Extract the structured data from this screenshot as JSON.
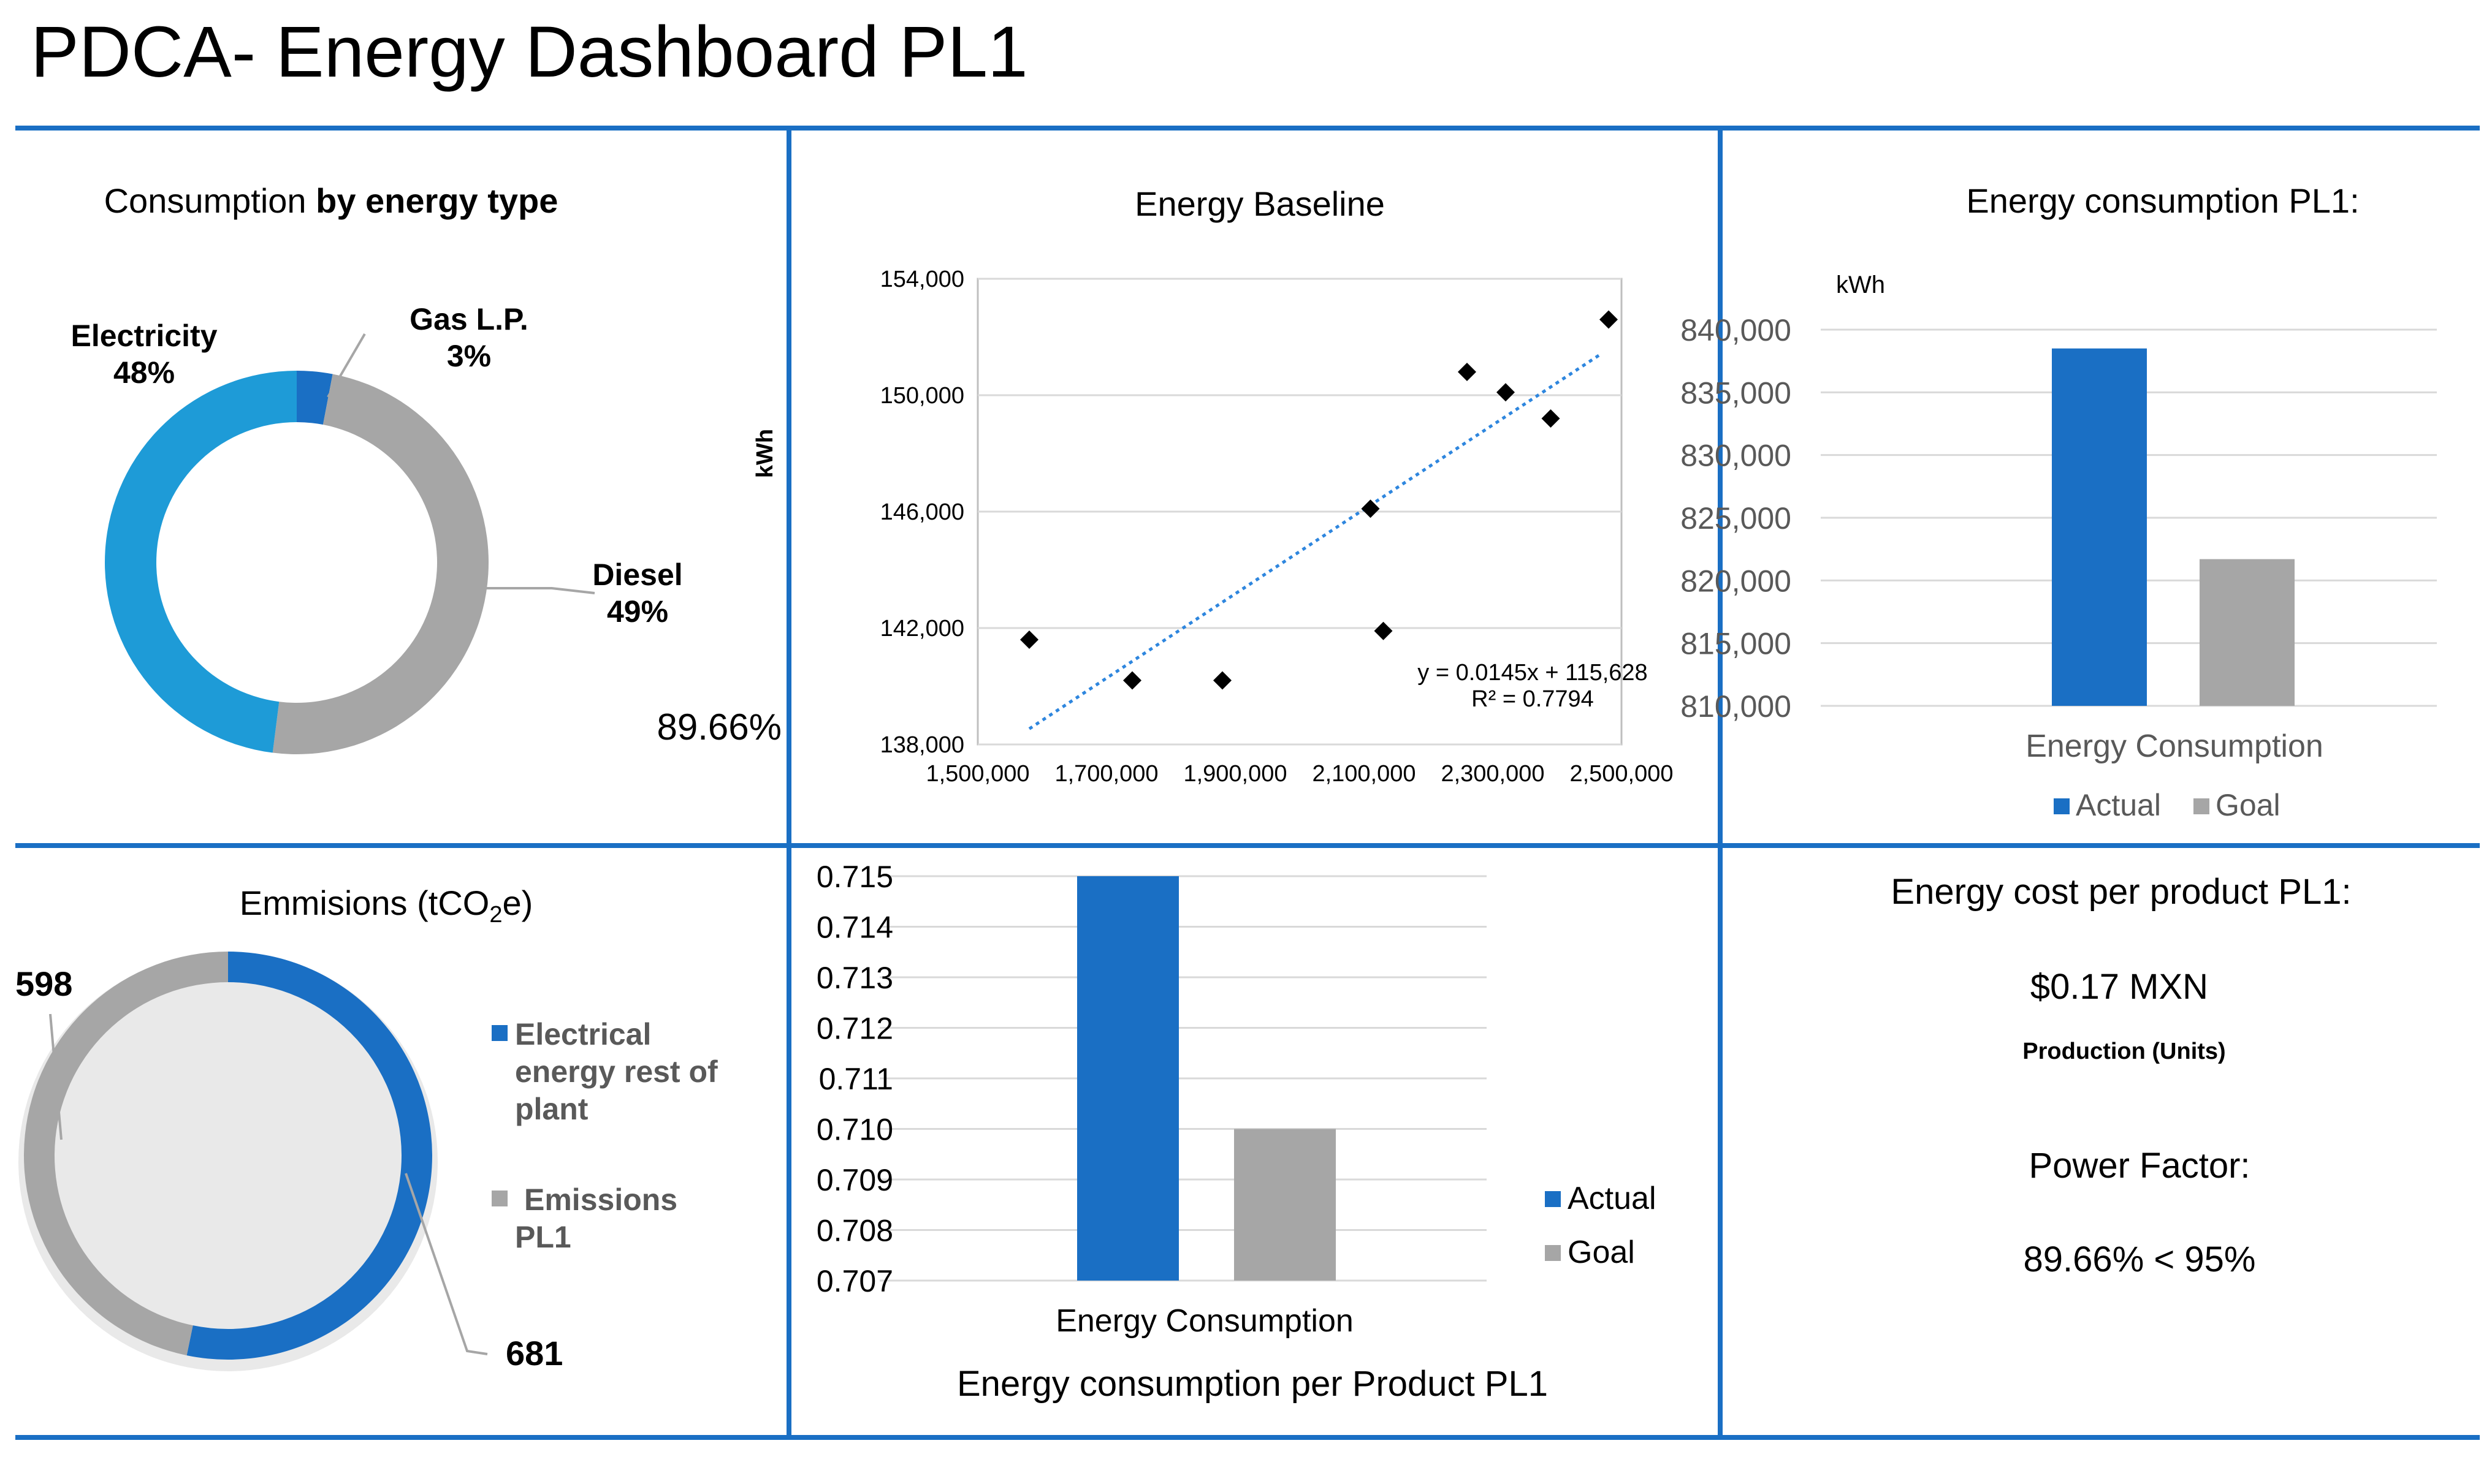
{
  "page": {
    "title": "PDCA- Energy Dashboard PL1",
    "accent_color": "#1A6FC4"
  },
  "donut_energy": {
    "title_prefix": "Consumption ",
    "title_bold": "by energy type",
    "pct_note": "89.66%",
    "chart_data": {
      "type": "pie",
      "variant": "donut",
      "slices": [
        {
          "name": "Gas L.P.",
          "value": 3,
          "label": "3%",
          "color": "#1A6FC4"
        },
        {
          "name": "Diesel",
          "value": 49,
          "label": "49%",
          "color": "#A6A6A6"
        },
        {
          "name": "Electricity",
          "value": 48,
          "label": "48%",
          "color": "#1E9BD7"
        }
      ]
    }
  },
  "baseline": {
    "chart_data": {
      "type": "scatter",
      "title": "Energy Baseline",
      "xlabel": "",
      "ylabel": "kWh",
      "xlim": [
        1500000,
        2500000
      ],
      "ylim": [
        138000,
        154000
      ],
      "xticks": [
        1500000,
        1700000,
        1900000,
        2100000,
        2300000,
        2500000
      ],
      "xtick_labels": [
        "1,500,000",
        "1,700,000",
        "1,900,000",
        "2,100,000",
        "2,300,000",
        "2,500,000"
      ],
      "yticks": [
        138000,
        142000,
        146000,
        150000,
        154000
      ],
      "ytick_labels": [
        "138,000",
        "142,000",
        "146,000",
        "150,000",
        "154,000"
      ],
      "grid": true,
      "points": [
        {
          "x": 1580000,
          "y": 141600
        },
        {
          "x": 1740000,
          "y": 140200
        },
        {
          "x": 1880000,
          "y": 140200
        },
        {
          "x": 2110000,
          "y": 146100
        },
        {
          "x": 2130000,
          "y": 141900
        },
        {
          "x": 2260000,
          "y": 150800
        },
        {
          "x": 2320000,
          "y": 150100
        },
        {
          "x": 2390000,
          "y": 149200
        },
        {
          "x": 2480000,
          "y": 152600
        }
      ],
      "trendline": {
        "x": [
          1580000,
          2470000
        ],
        "slope": 0.0145,
        "intercept": 115628
      },
      "equation_label": "y = 0.0145x + 115,628",
      "r2_label": "R² = 0.7794"
    }
  },
  "consumption": {
    "chart_data": {
      "type": "bar",
      "title": "Energy consumption PL1:",
      "ylabel": "kWh",
      "categories": [
        "Energy Consumption"
      ],
      "series": [
        {
          "name": "Actual",
          "values": [
            838500
          ],
          "color": "#1A6FC4"
        },
        {
          "name": "Goal",
          "values": [
            821700
          ],
          "color": "#A6A6A6"
        }
      ],
      "ylim": [
        810000,
        840000
      ],
      "yticks": [
        810000,
        815000,
        820000,
        825000,
        830000,
        835000,
        840000
      ],
      "ytick_labels": [
        "810,000",
        "815,000",
        "820,000",
        "825,000",
        "830,000",
        "835,000",
        "840,000"
      ],
      "grid": true,
      "legend": "bottom"
    }
  },
  "emissions": {
    "title_main": "Emmisions (tCO",
    "title_sub": "2",
    "title_tail": "e)",
    "chart_data": {
      "type": "pie",
      "variant": "donut",
      "slices": [
        {
          "name": "Electrical energy rest of plant",
          "value": 681,
          "label": "681",
          "color": "#1A6FC4"
        },
        {
          "name": "Emissions PL1",
          "value": 598,
          "label": "598",
          "color": "#A6A6A6"
        }
      ],
      "legend": "right",
      "legend_lines": [
        [
          "Electrical",
          "energy rest of",
          "plant"
        ],
        [
          "Emissions",
          "PL1"
        ]
      ]
    }
  },
  "per_product": {
    "chart_data": {
      "type": "bar",
      "title": "Energy consumption per Product  PL1",
      "categories": [
        "Energy Consumption"
      ],
      "series": [
        {
          "name": "Actual",
          "values": [
            0.715
          ],
          "color": "#1A6FC4"
        },
        {
          "name": "Goal",
          "values": [
            0.71
          ],
          "color": "#A6A6A6"
        }
      ],
      "ylim": [
        0.707,
        0.715
      ],
      "yticks": [
        0.707,
        0.708,
        0.709,
        0.71,
        0.711,
        0.712,
        0.713,
        0.714,
        0.715
      ],
      "ytick_labels": [
        "0.707",
        "0.708",
        "0.709",
        "0.710",
        "0.711",
        "0.712",
        "0.713",
        "0.714",
        "0.715"
      ],
      "grid": true,
      "legend": "right"
    }
  },
  "kpis": {
    "cost_title": "Energy cost per product PL1:",
    "cost_value": "$0.17 MXN",
    "production_label": "Production (Units)",
    "pf_title": "Power Factor:",
    "pf_value": "89.66% < 95%"
  }
}
